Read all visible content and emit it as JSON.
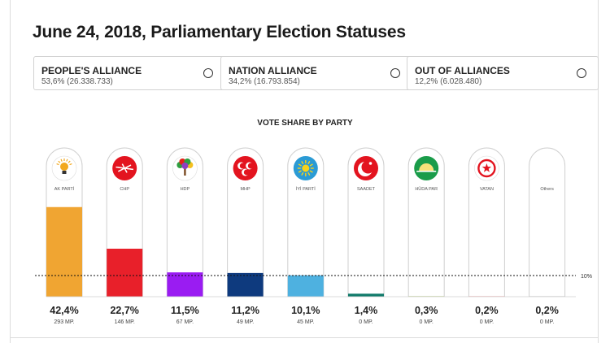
{
  "title": "June 24, 2018, Parliamentary Election Statuses",
  "alliances": [
    {
      "name": "PEOPLE'S ALLIANCE",
      "value": "53,6% (26.338.733)"
    },
    {
      "name": "NATION ALLIANCE",
      "value": "34,2% (16.793.854)"
    },
    {
      "name": "OUT OF ALLIANCES",
      "value": "12,2% (6.028.480)"
    }
  ],
  "chart_data": {
    "type": "bar",
    "title": "VOTE SHARE BY PARTY",
    "categories": [
      "AK PARTİ",
      "CHP",
      "HDP",
      "MHP",
      "İYİ PARTİ",
      "SAADET",
      "HÜDA PAR",
      "VATAN",
      "Others"
    ],
    "values": [
      42.4,
      22.7,
      11.5,
      11.2,
      10.1,
      1.4,
      0.3,
      0.2,
      0.2
    ],
    "value_labels": [
      "42,4%",
      "22,7%",
      "11,5%",
      "11,2%",
      "10,1%",
      "1,4%",
      "0,3%",
      "0,2%",
      "0,2%"
    ],
    "mp_labels": [
      "293 MP.",
      "146 MP.",
      "67 MP.",
      "49 MP.",
      "45 MP.",
      "0 MP.",
      "0 MP.",
      "0 MP.",
      "0 MP."
    ],
    "colors": [
      "#f0a532",
      "#e8202a",
      "#9a1cf2",
      "#0e3a7e",
      "#4eb1e0",
      "#107a6a",
      "#bfcf8e",
      "#e33535",
      "#999999"
    ],
    "icons": [
      "akp-bulb-icon",
      "chp-six-arrows-icon",
      "hdp-tree-icon",
      "mhp-crescents-icon",
      "iyi-sun-icon",
      "saadet-crescent-icon",
      "hudapar-sunrise-icon",
      "vatan-star-icon",
      ""
    ],
    "threshold": {
      "value": 10,
      "label": "10%"
    },
    "ylim": [
      0,
      55
    ]
  }
}
